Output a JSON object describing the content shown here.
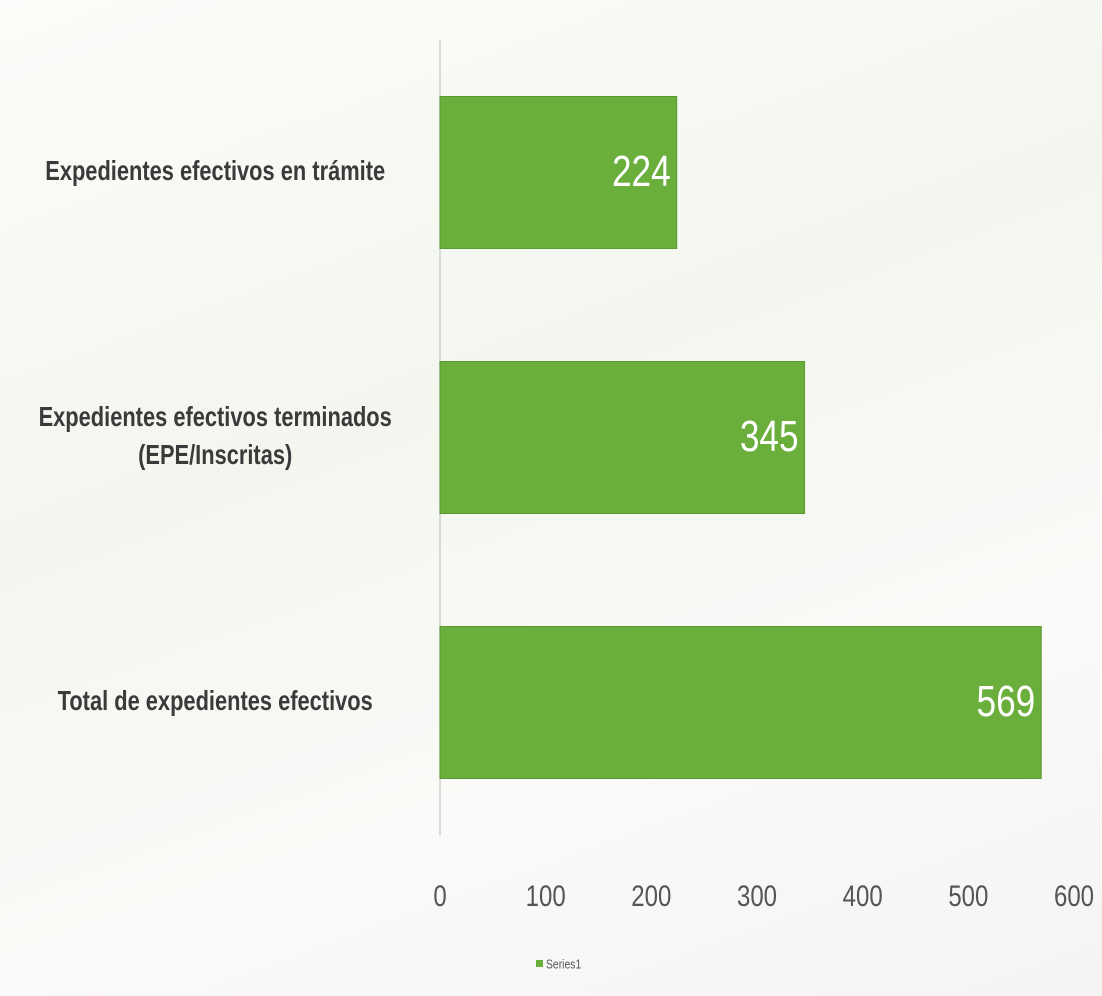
{
  "chart_data": {
    "type": "bar",
    "orientation": "horizontal",
    "categories": [
      "Expedientes efectivos en trámite",
      "Expedientes efectivos terminados (EPE/Inscritas)",
      "Total de expedientes efectivos"
    ],
    "series": [
      {
        "name": "Series1",
        "color": "#6aae3c",
        "values": [
          224,
          345,
          569
        ]
      }
    ],
    "xlim": [
      0,
      600
    ],
    "xticks": [
      0,
      100,
      200,
      300,
      400,
      500,
      600
    ],
    "grid": false,
    "legend": "bottom"
  }
}
